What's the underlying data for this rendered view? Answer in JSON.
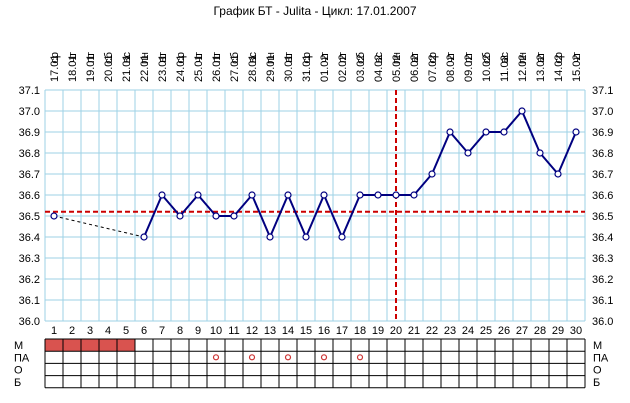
{
  "title": "График БТ - Julita - Цикл: 17.01.2007",
  "colors": {
    "grid": "#9ed2e6",
    "series": "#000080",
    "reference": "#cc0000",
    "menses": "#d9534f",
    "marker_pa": "#cc3333",
    "table_border": "#000000"
  },
  "chart_data": {
    "type": "line",
    "title": "График БТ - Julita - Цикл: 17.01.2007",
    "ylim": [
      36.0,
      37.1
    ],
    "yticks": [
      "36.0",
      "36.1",
      "36.2",
      "36.3",
      "36.4",
      "36.5",
      "36.6",
      "36.7",
      "36.8",
      "36.9",
      "37.0",
      "37.1"
    ],
    "grid": true,
    "days": [
      1,
      2,
      3,
      4,
      5,
      6,
      7,
      8,
      9,
      10,
      11,
      12,
      13,
      14,
      15,
      16,
      17,
      18,
      19,
      20,
      21,
      22,
      23,
      24,
      25,
      26,
      27,
      28,
      29,
      30
    ],
    "weekdays": [
      "ср",
      "чт",
      "пт",
      "сб",
      "вс",
      "пн",
      "вт",
      "ср",
      "чт",
      "пт",
      "сб",
      "вс",
      "пн",
      "вт",
      "ср",
      "чт",
      "пт",
      "сб",
      "вс",
      "пн",
      "вт",
      "ср",
      "чт",
      "пт",
      "сб",
      "вс",
      "пн",
      "вт",
      "ср",
      "чт"
    ],
    "dates": [
      "17.01",
      "18.01",
      "19.01",
      "20.01",
      "21.01",
      "22.01",
      "23.01",
      "24.01",
      "25.01",
      "26.01",
      "27.01",
      "28.01",
      "29.01",
      "30.01",
      "31.01",
      "01.02",
      "02.02",
      "03.02",
      "04.02",
      "05.02",
      "06.02",
      "07.02",
      "08.02",
      "09.02",
      "10.02",
      "11.02",
      "12.02",
      "13.02",
      "14.02",
      "15.02"
    ],
    "temperatures": [
      36.5,
      null,
      null,
      null,
      null,
      36.4,
      36.6,
      36.5,
      36.6,
      36.5,
      36.5,
      36.6,
      36.4,
      36.6,
      36.4,
      36.6,
      36.4,
      36.6,
      36.6,
      36.6,
      36.6,
      36.7,
      36.9,
      36.8,
      36.9,
      36.9,
      37.0,
      36.8,
      36.7,
      36.9
    ],
    "coverline": 36.52,
    "ovulation_day": 20,
    "rows": [
      {
        "label": "М",
        "menses_days": [
          1,
          2,
          3,
          4,
          5
        ]
      },
      {
        "label": "ПА",
        "marked_days": [
          10,
          12,
          14,
          16,
          18
        ]
      },
      {
        "label": "О",
        "marked_days": []
      },
      {
        "label": "Б",
        "marked_days": []
      }
    ]
  }
}
